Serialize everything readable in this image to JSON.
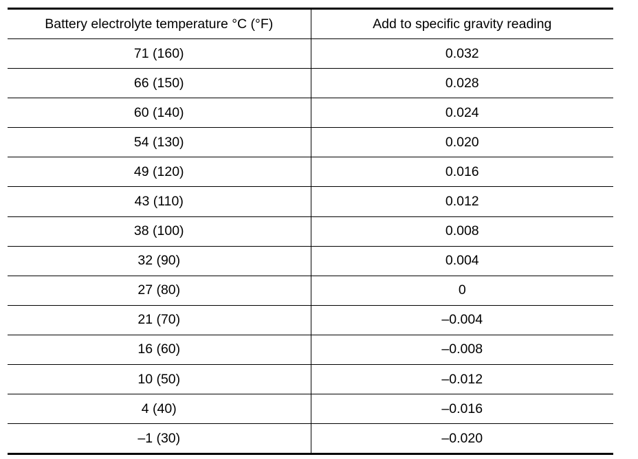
{
  "table": {
    "headers": [
      "Battery electrolyte temperature °C (°F)",
      "Add to specific gravity reading"
    ],
    "rows": [
      [
        "71 (160)",
        "0.032"
      ],
      [
        "66 (150)",
        "0.028"
      ],
      [
        "60 (140)",
        "0.024"
      ],
      [
        "54 (130)",
        "0.020"
      ],
      [
        "49 (120)",
        "0.016"
      ],
      [
        "43 (110)",
        "0.012"
      ],
      [
        "38 (100)",
        "0.008"
      ],
      [
        "32 (90)",
        "0.004"
      ],
      [
        "27 (80)",
        "0"
      ],
      [
        "21 (70)",
        "–0.004"
      ],
      [
        "16 (60)",
        "–0.008"
      ],
      [
        "10 (50)",
        "–0.012"
      ],
      [
        "4 (40)",
        "–0.016"
      ],
      [
        "–1 (30)",
        "–0.020"
      ]
    ]
  }
}
